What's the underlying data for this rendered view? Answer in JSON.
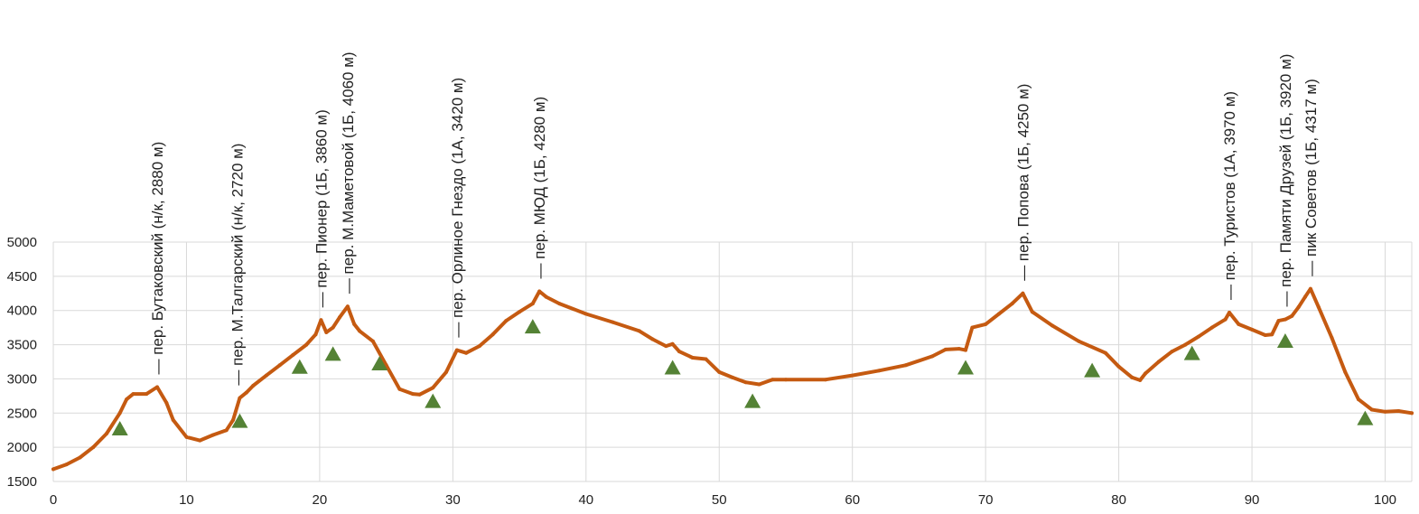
{
  "chart_data": {
    "type": "line",
    "title": "",
    "xlabel": "",
    "ylabel": "",
    "xlim": [
      0,
      102
    ],
    "ylim": [
      1500,
      5000
    ],
    "grid": true,
    "colors": {
      "line": "#c55a11",
      "marker": "#548235",
      "grid": "#d9d9d9"
    },
    "x_ticks": [
      0,
      10,
      20,
      30,
      40,
      50,
      60,
      70,
      80,
      90,
      100
    ],
    "y_ticks": [
      1500,
      2000,
      2500,
      3000,
      3500,
      4000,
      4500,
      5000
    ],
    "series": [
      {
        "x": [
          0,
          1,
          2,
          3,
          4,
          5,
          5.5,
          6,
          7,
          7.8,
          8.5,
          9,
          10,
          11,
          12,
          13,
          13.5,
          14,
          14.5,
          15,
          16,
          17,
          18,
          19,
          19.7,
          20.1,
          20.5,
          21,
          21.5,
          22.1,
          22.6,
          23,
          24,
          25,
          26,
          27,
          27.5,
          28.5,
          29.5,
          30.3,
          31,
          32,
          33,
          34,
          35,
          36,
          36.5,
          37,
          38,
          40,
          42,
          44,
          45,
          46,
          46.5,
          47,
          48,
          49,
          50,
          51,
          52,
          53,
          54,
          55,
          58,
          60,
          62,
          64,
          66,
          67,
          68,
          68.5,
          69,
          70,
          71,
          72,
          72.8,
          73.5,
          75,
          77,
          79,
          80,
          81,
          81.6,
          82,
          83,
          84,
          85,
          86,
          87,
          88,
          88.3,
          89,
          90,
          91,
          91.5,
          92,
          92.5,
          93,
          93.5,
          94,
          94.4,
          95,
          96,
          97,
          98,
          99,
          100,
          101,
          102
        ],
        "values": [
          1680,
          1750,
          1850,
          2000,
          2200,
          2500,
          2700,
          2780,
          2780,
          2880,
          2650,
          2400,
          2150,
          2100,
          2180,
          2250,
          2400,
          2720,
          2800,
          2900,
          3050,
          3200,
          3350,
          3500,
          3650,
          3860,
          3680,
          3750,
          3900,
          4060,
          3800,
          3700,
          3550,
          3200,
          2850,
          2780,
          2770,
          2870,
          3100,
          3420,
          3380,
          3480,
          3650,
          3850,
          3980,
          4100,
          4280,
          4200,
          4100,
          3950,
          3830,
          3700,
          3580,
          3480,
          3510,
          3400,
          3310,
          3290,
          3100,
          3020,
          2950,
          2920,
          2990,
          2990,
          2990,
          3050,
          3120,
          3200,
          3330,
          3430,
          3440,
          3420,
          3750,
          3800,
          3950,
          4100,
          4250,
          3980,
          3780,
          3550,
          3380,
          3180,
          3020,
          2980,
          3080,
          3250,
          3400,
          3500,
          3620,
          3750,
          3870,
          3970,
          3800,
          3720,
          3640,
          3650,
          3850,
          3870,
          3920,
          4050,
          4200,
          4317,
          4050,
          3600,
          3100,
          2700,
          2550,
          2520,
          2530,
          2500
        ]
      }
    ],
    "markers": [
      {
        "x": 5,
        "y": 2280
      },
      {
        "x": 14,
        "y": 2390
      },
      {
        "x": 18.5,
        "y": 3180
      },
      {
        "x": 21,
        "y": 3370
      },
      {
        "x": 24.5,
        "y": 3230
      },
      {
        "x": 28.5,
        "y": 2680
      },
      {
        "x": 36,
        "y": 3770
      },
      {
        "x": 46.5,
        "y": 3170
      },
      {
        "x": 52.5,
        "y": 2680
      },
      {
        "x": 68.5,
        "y": 3170
      },
      {
        "x": 78,
        "y": 3130
      },
      {
        "x": 85.5,
        "y": 3380
      },
      {
        "x": 92.5,
        "y": 3560
      },
      {
        "x": 98.5,
        "y": 2430
      }
    ],
    "annotations": [
      {
        "x": 7.8,
        "label": "— пер. Бутаковский (н/к, 2880 м)"
      },
      {
        "x": 13.8,
        "label": "— пер. М.Талгарский (н/к, 2720 м)"
      },
      {
        "x": 20.1,
        "label": "— пер. Пионер (1Б, 3860 м)"
      },
      {
        "x": 22.1,
        "label": "— пер. М.Маметовой (1Б, 4060 м)"
      },
      {
        "x": 30.3,
        "label": "— пер. Орлиное Гнездо (1А, 3420 м)"
      },
      {
        "x": 36.5,
        "label": "— пер. МЮД (1Б, 4280 м)"
      },
      {
        "x": 72.8,
        "label": "— пер. Попова (1Б, 4250 м)"
      },
      {
        "x": 88.3,
        "label": "— пер. Туристов (1А, 3970 м)"
      },
      {
        "x": 92.5,
        "label": "— пер. Памяти Друзей (1Б, 3920 м)"
      },
      {
        "x": 94.4,
        "label": "— пик Советов (1Б, 4317 м)"
      }
    ]
  }
}
